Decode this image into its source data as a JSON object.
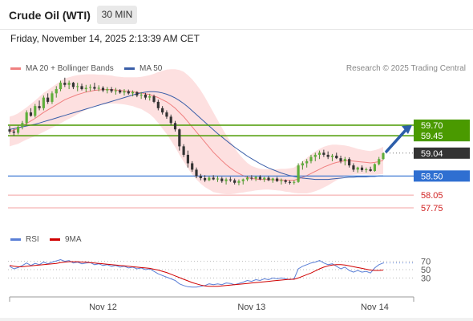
{
  "header": {
    "title": "Crude Oil (WTI)",
    "timeframe": "30 MIN"
  },
  "timestamp": "Friday, November 14, 2025 2:13:39 AM CET",
  "legend": {
    "main": [
      {
        "label": "MA 20 + Bollinger Bands",
        "color": "#f08080"
      },
      {
        "label": "MA 50",
        "color": "#3a5ea8"
      }
    ],
    "rsi": [
      {
        "label": "RSI",
        "color": "#5a7fd6"
      },
      {
        "label": "9MA",
        "color": "#d00000"
      }
    ]
  },
  "copyright": "Research © 2025 Trading Central",
  "chart_data": {
    "type": "candlestick",
    "x_ticks": [
      "Nov 12",
      "Nov 13",
      "Nov 14"
    ],
    "price_levels": [
      {
        "label": "59.70",
        "value": 59.7,
        "kind": "resistance",
        "color": "#4a9a00"
      },
      {
        "label": "59.45",
        "value": 59.45,
        "kind": "resistance",
        "color": "#4a9a00"
      },
      {
        "label": "59.04",
        "value": 59.04,
        "kind": "last",
        "color": "#333333"
      },
      {
        "label": "58.50",
        "value": 58.5,
        "kind": "pivot",
        "color": "#2f6fd1"
      },
      {
        "label": "58.05",
        "value": 58.05,
        "kind": "support",
        "color": "#e06060"
      },
      {
        "label": "57.75",
        "value": 57.75,
        "kind": "support",
        "color": "#e06060"
      }
    ],
    "ylim": [
      57.2,
      61.1
    ],
    "candles": [
      [
        59.6,
        59.68,
        59.5,
        59.55
      ],
      [
        59.55,
        59.62,
        59.45,
        59.52
      ],
      [
        59.52,
        59.7,
        59.48,
        59.66
      ],
      [
        59.66,
        59.8,
        59.6,
        59.75
      ],
      [
        59.75,
        60.05,
        59.7,
        60.0
      ],
      [
        60.0,
        60.1,
        59.9,
        59.92
      ],
      [
        59.92,
        60.2,
        59.88,
        60.15
      ],
      [
        60.15,
        60.28,
        60.05,
        60.1
      ],
      [
        60.1,
        60.4,
        60.05,
        60.35
      ],
      [
        60.35,
        60.45,
        60.2,
        60.25
      ],
      [
        60.25,
        60.5,
        60.2,
        60.45
      ],
      [
        60.45,
        60.62,
        60.35,
        60.55
      ],
      [
        60.55,
        60.75,
        60.5,
        60.7
      ],
      [
        60.7,
        60.82,
        60.6,
        60.65
      ],
      [
        60.65,
        60.75,
        60.55,
        60.7
      ],
      [
        60.7,
        60.72,
        60.55,
        60.6
      ],
      [
        60.6,
        60.7,
        60.5,
        60.62
      ],
      [
        60.62,
        60.68,
        60.52,
        60.55
      ],
      [
        60.55,
        60.65,
        60.48,
        60.58
      ],
      [
        60.58,
        60.66,
        60.5,
        60.6
      ],
      [
        60.6,
        60.7,
        60.52,
        60.56
      ],
      [
        60.56,
        60.64,
        60.5,
        60.58
      ],
      [
        60.58,
        60.62,
        60.48,
        60.52
      ],
      [
        60.52,
        60.6,
        60.45,
        60.55
      ],
      [
        60.55,
        60.6,
        60.46,
        60.5
      ],
      [
        60.5,
        60.58,
        60.42,
        60.52
      ],
      [
        60.52,
        60.55,
        60.44,
        60.47
      ],
      [
        60.47,
        60.55,
        60.4,
        60.5
      ],
      [
        60.5,
        60.54,
        60.42,
        60.45
      ],
      [
        60.45,
        60.52,
        60.38,
        60.48
      ],
      [
        60.48,
        60.5,
        60.36,
        60.4
      ],
      [
        60.4,
        60.48,
        60.32,
        60.42
      ],
      [
        60.42,
        60.46,
        60.3,
        60.35
      ],
      [
        60.35,
        60.44,
        60.28,
        60.38
      ],
      [
        60.38,
        60.42,
        60.22,
        60.25
      ],
      [
        60.25,
        60.3,
        60.05,
        60.1
      ],
      [
        60.1,
        60.15,
        59.95,
        60.0
      ],
      [
        60.0,
        60.05,
        59.85,
        59.9
      ],
      [
        59.9,
        59.95,
        59.7,
        59.75
      ],
      [
        59.75,
        59.8,
        59.55,
        59.6
      ],
      [
        59.6,
        59.62,
        59.1,
        59.2
      ],
      [
        59.2,
        59.25,
        58.95,
        59.0
      ],
      [
        59.0,
        59.1,
        58.7,
        58.8
      ],
      [
        58.8,
        58.85,
        58.6,
        58.65
      ],
      [
        58.65,
        58.7,
        58.45,
        58.5
      ],
      [
        58.5,
        58.55,
        58.4,
        58.45
      ],
      [
        58.45,
        58.52,
        58.36,
        58.4
      ],
      [
        58.4,
        58.5,
        58.38,
        58.46
      ],
      [
        58.46,
        58.52,
        58.4,
        58.42
      ],
      [
        58.42,
        58.5,
        58.36,
        58.44
      ],
      [
        58.44,
        58.48,
        58.34,
        58.38
      ],
      [
        58.38,
        58.46,
        58.3,
        58.42
      ],
      [
        58.42,
        58.48,
        58.36,
        58.4
      ],
      [
        58.4,
        58.44,
        58.3,
        58.34
      ],
      [
        58.34,
        58.42,
        58.28,
        58.38
      ],
      [
        58.38,
        58.44,
        58.3,
        58.42
      ],
      [
        58.42,
        58.5,
        58.38,
        58.46
      ],
      [
        58.46,
        58.52,
        58.4,
        58.44
      ],
      [
        58.44,
        58.5,
        58.38,
        58.48
      ],
      [
        58.48,
        58.52,
        58.4,
        58.42
      ],
      [
        58.42,
        58.48,
        58.36,
        58.46
      ],
      [
        58.46,
        58.5,
        58.38,
        58.4
      ],
      [
        58.4,
        58.46,
        58.34,
        58.44
      ],
      [
        58.44,
        58.48,
        58.36,
        58.38
      ],
      [
        58.38,
        58.44,
        58.3,
        58.4
      ],
      [
        58.4,
        58.42,
        58.32,
        58.36
      ],
      [
        58.36,
        58.4,
        58.3,
        58.34
      ],
      [
        58.34,
        58.4,
        58.3,
        58.36
      ],
      [
        58.36,
        58.8,
        58.34,
        58.75
      ],
      [
        58.75,
        58.85,
        58.65,
        58.8
      ],
      [
        58.8,
        58.9,
        58.7,
        58.85
      ],
      [
        58.85,
        59.0,
        58.8,
        58.95
      ],
      [
        58.95,
        59.05,
        58.85,
        59.0
      ],
      [
        59.0,
        59.1,
        58.9,
        59.05
      ],
      [
        59.05,
        59.12,
        58.95,
        59.0
      ],
      [
        59.0,
        59.08,
        58.9,
        58.95
      ],
      [
        58.95,
        59.02,
        58.85,
        58.98
      ],
      [
        58.98,
        59.05,
        58.9,
        58.92
      ],
      [
        58.92,
        58.98,
        58.8,
        58.85
      ],
      [
        58.85,
        58.95,
        58.75,
        58.9
      ],
      [
        58.9,
        58.94,
        58.7,
        58.75
      ],
      [
        58.75,
        58.8,
        58.6,
        58.65
      ],
      [
        58.65,
        58.72,
        58.58,
        58.7
      ],
      [
        58.7,
        58.75,
        58.6,
        58.64
      ],
      [
        58.64,
        58.7,
        58.58,
        58.66
      ],
      [
        58.66,
        58.72,
        58.6,
        58.62
      ],
      [
        58.62,
        58.8,
        58.6,
        58.78
      ],
      [
        58.78,
        58.95,
        58.75,
        58.9
      ],
      [
        58.9,
        59.05,
        58.88,
        59.04
      ]
    ],
    "ma20": [
      59.55,
      59.58,
      59.62,
      59.68,
      59.74,
      59.8,
      59.86,
      59.93,
      60.0,
      60.06,
      60.12,
      60.18,
      60.24,
      60.3,
      60.34,
      60.38,
      60.42,
      60.45,
      60.48,
      60.5,
      60.52,
      60.53,
      60.54,
      60.54,
      60.54,
      60.53,
      60.52,
      60.51,
      60.5,
      60.49,
      60.47,
      60.46,
      60.44,
      60.42,
      60.39,
      60.35,
      60.3,
      60.25,
      60.18,
      60.1,
      60.0,
      59.9,
      59.78,
      59.66,
      59.54,
      59.42,
      59.3,
      59.18,
      59.06,
      58.96,
      58.86,
      58.77,
      58.69,
      58.62,
      58.56,
      58.51,
      58.47,
      58.44,
      58.43,
      58.42,
      58.42,
      58.42,
      58.41,
      58.41,
      58.41,
      58.4,
      58.4,
      58.4,
      58.43,
      58.47,
      58.51,
      58.56,
      58.61,
      58.66,
      58.71,
      58.75,
      58.79,
      58.82,
      58.84,
      58.86,
      58.86,
      58.85,
      58.84,
      58.83,
      58.82,
      58.81,
      58.82,
      58.84,
      58.87
    ],
    "ma50": [
      59.6,
      59.62,
      59.64,
      59.66,
      59.68,
      59.7,
      59.72,
      59.75,
      59.78,
      59.81,
      59.84,
      59.87,
      59.9,
      59.93,
      59.96,
      59.99,
      60.02,
      60.05,
      60.08,
      60.11,
      60.14,
      60.17,
      60.2,
      60.23,
      60.26,
      60.29,
      60.32,
      60.35,
      60.38,
      60.41,
      60.44,
      60.46,
      60.48,
      60.49,
      60.49,
      60.48,
      60.46,
      60.43,
      60.39,
      60.34,
      60.28,
      60.21,
      60.13,
      60.04,
      59.95,
      59.86,
      59.77,
      59.68,
      59.59,
      59.5,
      59.42,
      59.34,
      59.26,
      59.18,
      59.11,
      59.04,
      58.97,
      58.91,
      58.85,
      58.79,
      58.74,
      58.69,
      58.65,
      58.61,
      58.57,
      58.54,
      58.51,
      58.49,
      58.47,
      58.45,
      58.44,
      58.43,
      58.42,
      58.42,
      58.42,
      58.42,
      58.43,
      58.44,
      58.45,
      58.46,
      58.47,
      58.47,
      58.48,
      58.48,
      58.48,
      58.49,
      58.49,
      58.5,
      58.5
    ],
    "bb_width": [
      0.35,
      0.35,
      0.36,
      0.37,
      0.38,
      0.4,
      0.42,
      0.44,
      0.46,
      0.47,
      0.48,
      0.49,
      0.5,
      0.5,
      0.49,
      0.48,
      0.46,
      0.44,
      0.42,
      0.4,
      0.38,
      0.36,
      0.35,
      0.34,
      0.33,
      0.32,
      0.32,
      0.32,
      0.33,
      0.34,
      0.36,
      0.38,
      0.42,
      0.46,
      0.52,
      0.6,
      0.68,
      0.76,
      0.84,
      0.92,
      1.0,
      1.06,
      1.1,
      1.12,
      1.12,
      1.1,
      1.06,
      1.0,
      0.94,
      0.86,
      0.78,
      0.7,
      0.62,
      0.54,
      0.46,
      0.4,
      0.34,
      0.3,
      0.27,
      0.25,
      0.24,
      0.24,
      0.24,
      0.25,
      0.26,
      0.27,
      0.28,
      0.3,
      0.34,
      0.38,
      0.42,
      0.45,
      0.47,
      0.48,
      0.48,
      0.47,
      0.45,
      0.42,
      0.39,
      0.36,
      0.34,
      0.32,
      0.3,
      0.29,
      0.28,
      0.28,
      0.29,
      0.3,
      0.32
    ],
    "rsi": {
      "ticks": [
        70,
        50,
        30
      ],
      "ylim": [
        0,
        100
      ],
      "rsi": [
        58,
        52,
        55,
        60,
        66,
        60,
        65,
        62,
        68,
        64,
        68,
        71,
        74,
        70,
        72,
        66,
        68,
        64,
        66,
        67,
        62,
        64,
        60,
        62,
        58,
        60,
        56,
        58,
        54,
        56,
        52,
        54,
        50,
        52,
        46,
        40,
        36,
        32,
        28,
        24,
        16,
        12,
        9,
        8,
        8,
        10,
        12,
        16,
        14,
        16,
        14,
        18,
        17,
        14,
        17,
        20,
        24,
        22,
        26,
        24,
        28,
        26,
        30,
        28,
        30,
        28,
        26,
        28,
        52,
        58,
        62,
        66,
        68,
        72,
        66,
        62,
        64,
        58,
        52,
        56,
        48,
        44,
        48,
        44,
        46,
        42,
        54,
        62,
        66
      ],
      "ma9": [
        60,
        58,
        57,
        57,
        58,
        59,
        60,
        61,
        62,
        63,
        64,
        65,
        67,
        68,
        69,
        69,
        69,
        68,
        68,
        67,
        66,
        65,
        64,
        63,
        62,
        61,
        60,
        59,
        58,
        57,
        56,
        55,
        54,
        53,
        51,
        49,
        46,
        43,
        39,
        35,
        31,
        27,
        23,
        19,
        16,
        13,
        11,
        10,
        10,
        10,
        11,
        12,
        13,
        14,
        15,
        16,
        17,
        18,
        19,
        20,
        21,
        22,
        23,
        24,
        25,
        26,
        27,
        27,
        30,
        34,
        38,
        42,
        47,
        52,
        56,
        59,
        61,
        62,
        62,
        61,
        59,
        57,
        55,
        53,
        51,
        49,
        48,
        48,
        49
      ]
    }
  }
}
